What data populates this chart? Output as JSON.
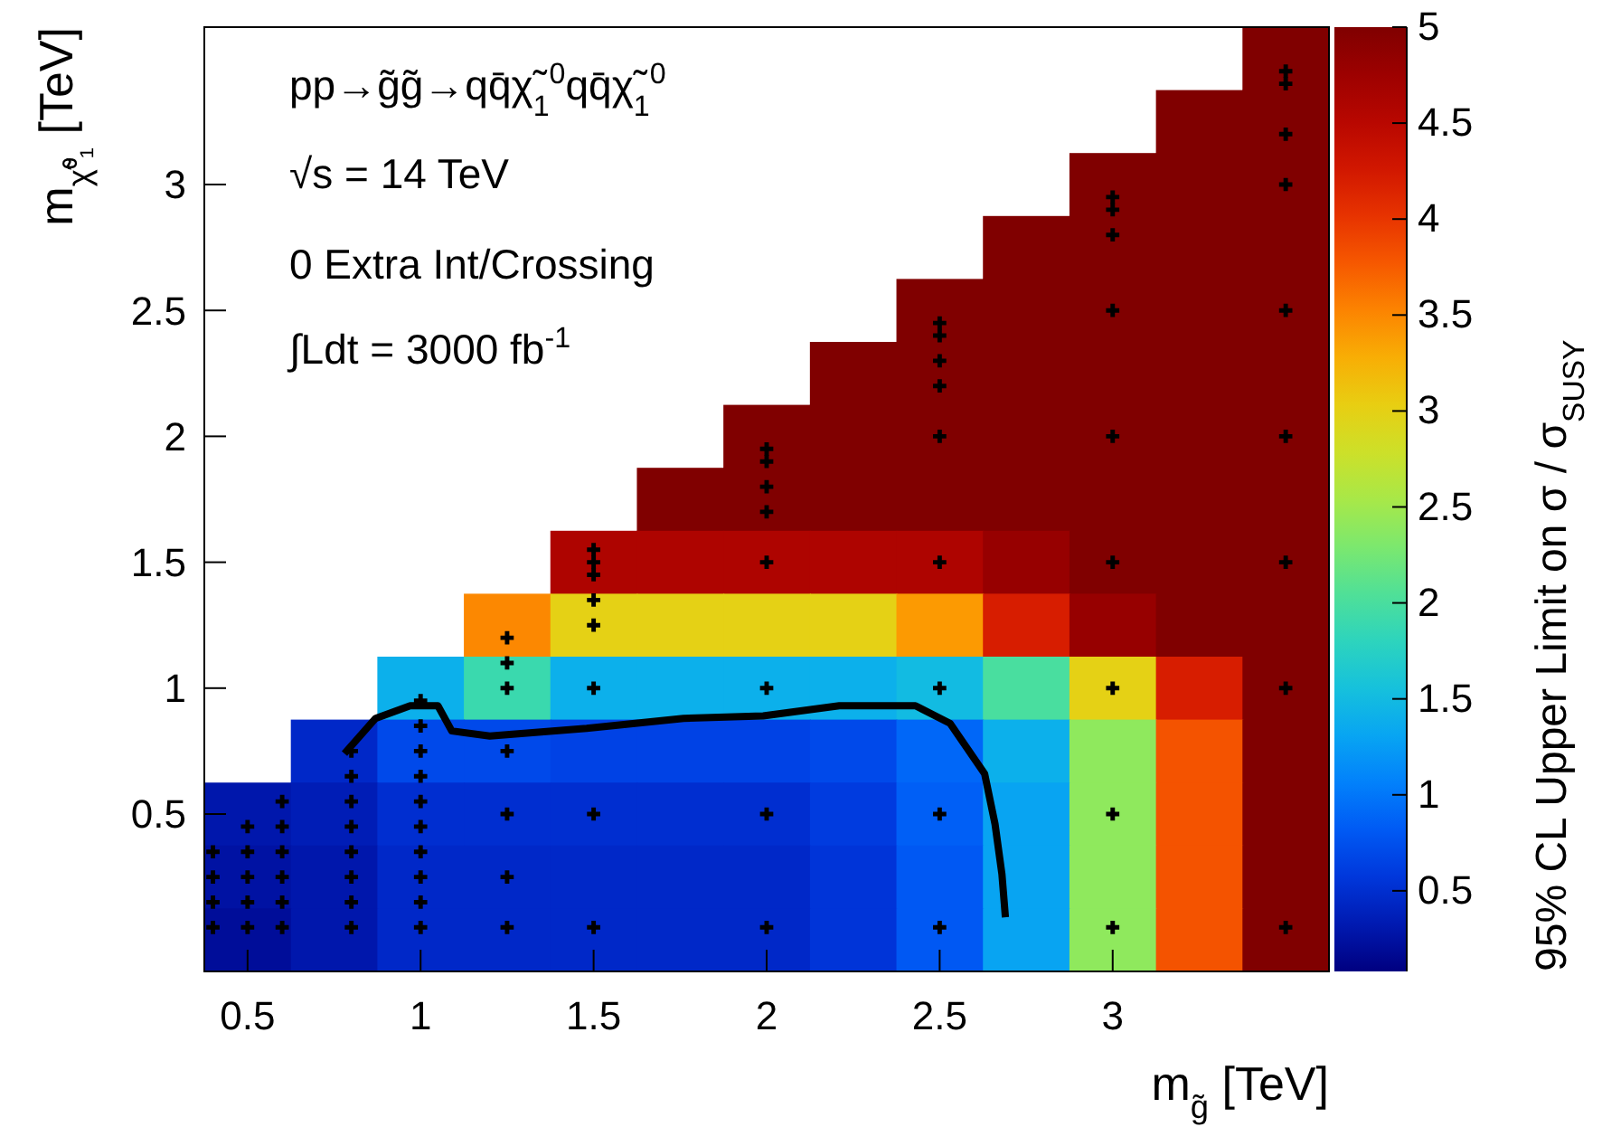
{
  "chart_data": [
    {
      "type": "heatmap",
      "xlabel": "m$_{g̃}$ [TeV]",
      "ylabel": "m$_{χ̃⁰₁}$ [TeV]",
      "clabel": "95% CL Upper Limit on σ / σ$_{SUSY}$",
      "annotations": [
        "pp→g̃g̃→qq̄χ̃$_{1}$$^{0}$qq̄χ̃$_{1}$$^{0}$",
        "√s = 14 TeV",
        "0 Extra Int/Crossing",
        "∫Ldt = 3000 fb$^{-1}$"
      ],
      "clim": [
        0.08,
        5
      ],
      "cticks": [
        0.5,
        1,
        1.5,
        2,
        2.5,
        3,
        3.5,
        4,
        4.5,
        5
      ],
      "categories": [
        "0.5",
        null,
        "1",
        null,
        "1.5",
        null,
        "2",
        null,
        "2.5",
        null,
        "3",
        null,
        null
      ],
      "y_categories": [
        null,
        null,
        "3",
        null,
        "2.5",
        null,
        "2",
        null,
        "1.5",
        null,
        "1",
        null,
        "0.5",
        null,
        null
      ],
      "cells": [
        [
          null,
          null,
          null,
          null,
          null,
          null,
          null,
          null,
          null,
          null,
          null,
          null,
          5
        ],
        [
          null,
          null,
          null,
          null,
          null,
          null,
          null,
          null,
          null,
          null,
          null,
          5,
          5
        ],
        [
          null,
          null,
          null,
          null,
          null,
          null,
          null,
          null,
          null,
          null,
          5,
          5,
          5
        ],
        [
          null,
          null,
          null,
          null,
          null,
          null,
          null,
          null,
          null,
          5,
          5,
          5,
          5
        ],
        [
          null,
          null,
          null,
          null,
          null,
          null,
          null,
          null,
          5,
          5,
          5,
          5,
          5
        ],
        [
          null,
          null,
          null,
          null,
          null,
          null,
          null,
          5,
          5,
          5,
          5,
          5,
          5
        ],
        [
          null,
          null,
          null,
          null,
          null,
          null,
          5,
          5,
          5,
          5,
          5,
          5,
          5
        ],
        [
          null,
          null,
          null,
          null,
          null,
          5,
          5,
          5,
          5,
          5,
          5,
          5,
          5
        ],
        [
          null,
          null,
          null,
          null,
          4.6,
          4.6,
          4.6,
          4.6,
          4.6,
          4.8,
          5,
          5,
          5
        ],
        [
          null,
          null,
          null,
          3.5,
          3,
          3,
          3,
          3,
          3.4,
          4.2,
          4.8,
          5,
          5
        ],
        [
          null,
          null,
          1.4,
          1.9,
          1.4,
          1.4,
          1.4,
          1.4,
          1.5,
          2,
          3,
          4.2,
          5
        ],
        [
          null,
          0.45,
          0.7,
          0.7,
          0.65,
          0.65,
          0.65,
          0.7,
          0.9,
          1.4,
          2.4,
          3.8,
          5
        ],
        [
          0.3,
          0.35,
          0.5,
          0.5,
          0.5,
          0.5,
          0.5,
          0.6,
          0.85,
          1.3,
          2.4,
          3.8,
          5
        ],
        [
          0.25,
          0.3,
          0.45,
          0.45,
          0.45,
          0.45,
          0.45,
          0.55,
          0.8,
          1.3,
          2.4,
          3.8,
          5
        ],
        [
          0.2,
          0.3,
          0.45,
          0.45,
          0.45,
          0.45,
          0.45,
          0.55,
          0.8,
          1.3,
          2.4,
          3.8,
          5
        ]
      ]
    },
    {
      "type": "line",
      "tick_labels": false,
      "xlim": [
        0.375,
        3.625
      ],
      "xticks": [
        0.5,
        1,
        1.5,
        2,
        2.5,
        3
      ],
      "ylim": [
        -0.125,
        3.625
      ],
      "yticks": [
        0.5,
        1,
        1.5,
        2,
        2.5,
        3
      ],
      "series": [
        {
          "type": "line",
          "color": "#000000",
          "line_style": "solid",
          "x": [
            0.78,
            0.87,
            0.97,
            1.05,
            1.09,
            1.2,
            1.48,
            1.76,
            1.99,
            2.21,
            2.43,
            2.53,
            2.63,
            2.66,
            2.68,
            2.69
          ],
          "values": [
            0.74,
            0.88,
            0.93,
            0.93,
            0.83,
            0.81,
            0.84,
            0.88,
            0.89,
            0.93,
            0.93,
            0.86,
            0.66,
            0.46,
            0.26,
            0.09
          ]
        },
        {
          "type": "scatter",
          "color": "#000000",
          "marker": "cross",
          "x": [
            0.4,
            0.4,
            0.4,
            0.4,
            0.5,
            0.5,
            0.5,
            0.5,
            0.5,
            0.6,
            0.6,
            0.6,
            0.6,
            0.6,
            0.6,
            0.8,
            0.8,
            0.8,
            0.8,
            0.8,
            0.8,
            0.8,
            0.8,
            1,
            1,
            1,
            1,
            1,
            1,
            1,
            1,
            1,
            1,
            1.25,
            1.25,
            1.25,
            1.25,
            1.25,
            1.25,
            1.25,
            1.5,
            1.5,
            1.5,
            1.5,
            1.5,
            1.5,
            1.5,
            1.5,
            2,
            2,
            2,
            2,
            2,
            2,
            2,
            2,
            2.5,
            2.5,
            2.5,
            2.5,
            2.5,
            2.5,
            2.5,
            2.5,
            2.5,
            3,
            3,
            3,
            3,
            3,
            3,
            3,
            3,
            3,
            3.5,
            3.5,
            3.5,
            3.5,
            3.5,
            3.5,
            3.5,
            3.5,
            3.5
          ],
          "values": [
            0.05,
            0.15,
            0.25,
            0.35,
            0.05,
            0.15,
            0.25,
            0.35,
            0.45,
            0.05,
            0.15,
            0.25,
            0.35,
            0.45,
            0.55,
            0.05,
            0.15,
            0.25,
            0.35,
            0.45,
            0.55,
            0.65,
            0.75,
            0.05,
            0.15,
            0.25,
            0.35,
            0.45,
            0.55,
            0.65,
            0.75,
            0.85,
            0.95,
            0.05,
            0.25,
            0.5,
            0.75,
            1,
            1.1,
            1.2,
            0.05,
            0.5,
            1,
            1.25,
            1.35,
            1.45,
            1.5,
            1.55,
            0.05,
            0.5,
            1,
            1.5,
            1.7,
            1.8,
            1.9,
            1.95,
            0.05,
            0.5,
            1,
            1.5,
            2,
            2.2,
            2.3,
            2.4,
            2.45,
            0.05,
            0.5,
            1,
            1.5,
            2,
            2.5,
            2.8,
            2.9,
            2.95,
            0.05,
            1,
            1.5,
            2,
            2.5,
            3,
            3.2,
            3.4,
            3.45
          ]
        }
      ]
    }
  ]
}
